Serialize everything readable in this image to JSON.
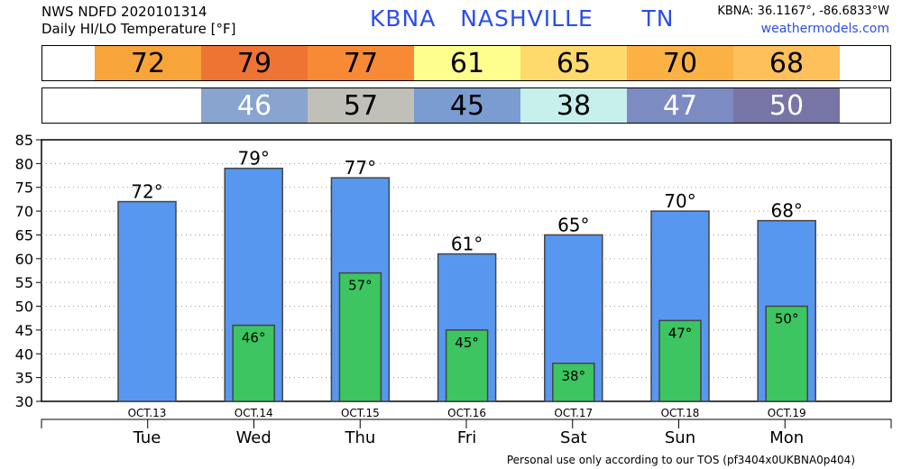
{
  "header": {
    "title_line1": "NWS NDFD 2020101314",
    "title_line2": "Daily HI/LO Temperature [°F]",
    "station": "KBNA   NASHVILLE      TN",
    "coords": "KBNA: 36.1167°, -86.6833°W",
    "site": "weathermodels.com"
  },
  "footer": "Personal use only according to our TOS (pf3404x0UKBNA0p404)",
  "hi_strip": [
    {
      "label": "72",
      "color": "#f7a43b"
    },
    {
      "label": "79",
      "color": "#ee7434"
    },
    {
      "label": "77",
      "color": "#f88a36"
    },
    {
      "label": "61",
      "color": "#fefe8e"
    },
    {
      "label": "65",
      "color": "#fed96c"
    },
    {
      "label": "70",
      "color": "#fcb144"
    },
    {
      "label": "68",
      "color": "#fdc05a"
    }
  ],
  "lo_strip": [
    {
      "label": "",
      "color": "#ffffff"
    },
    {
      "label": "46",
      "color": "#88a4cf",
      "text_color": "#ffffff"
    },
    {
      "label": "57",
      "color": "#c0c0b8",
      "text_color": "#000000"
    },
    {
      "label": "45",
      "color": "#7b9cd0",
      "text_color": "#000000"
    },
    {
      "label": "38",
      "color": "#c7f0ec",
      "text_color": "#000000"
    },
    {
      "label": "47",
      "color": "#7d8bc3",
      "text_color": "#ffffff"
    },
    {
      "label": "50",
      "color": "#7775a6",
      "text_color": "#ffffff"
    }
  ],
  "chart_data": {
    "type": "bar",
    "categories": [
      "OCT.13",
      "OCT.14",
      "OCT.15",
      "OCT.16",
      "OCT.17",
      "OCT.18",
      "OCT.19"
    ],
    "days": [
      "Tue",
      "Wed",
      "Thu",
      "Fri",
      "Sat",
      "Sun",
      "Mon"
    ],
    "series": [
      {
        "name": "HI",
        "values": [
          72,
          79,
          77,
          61,
          65,
          70,
          68
        ],
        "labels": [
          "72°",
          "79°",
          "77°",
          "61°",
          "65°",
          "70°",
          "68°"
        ],
        "color": "#5897f0"
      },
      {
        "name": "LO",
        "values": [
          null,
          46,
          57,
          45,
          38,
          47,
          50
        ],
        "labels": [
          "",
          "46°",
          "57°",
          "45°",
          "38°",
          "47°",
          "50°"
        ],
        "color": "#3cc560"
      }
    ],
    "ylim": [
      30,
      85
    ],
    "yticks": [
      30,
      35,
      40,
      45,
      50,
      55,
      60,
      65,
      70,
      75,
      80,
      85
    ],
    "ytick_labels": [
      "30",
      "35",
      "40",
      "45",
      "50",
      "55",
      "60",
      "65",
      "70",
      "75",
      "80",
      "85"
    ],
    "grid": true
  }
}
